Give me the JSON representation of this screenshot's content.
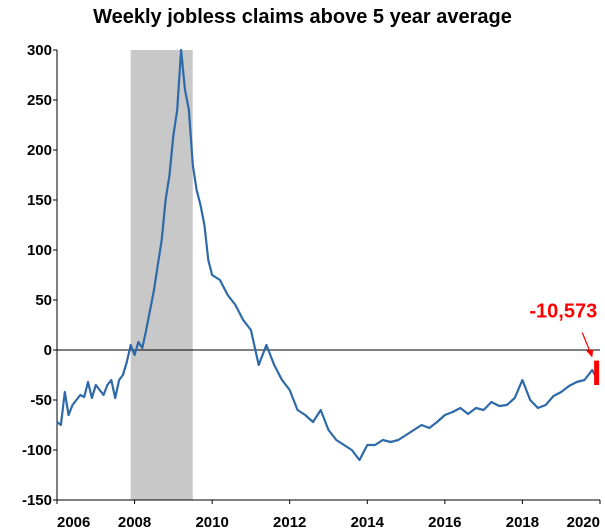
{
  "chart_data": {
    "type": "line",
    "title": "Weekly jobless claims above 5 year average",
    "xlabel": "",
    "ylabel": "",
    "xlim": [
      2006,
      2020
    ],
    "ylim": [
      -150,
      300
    ],
    "x_ticks": [
      "2006",
      "2008",
      "2010",
      "2012",
      "2014",
      "2016",
      "2018",
      "2020"
    ],
    "y_ticks": [
      "300",
      "250",
      "200",
      "150",
      "100",
      "50",
      "0",
      "-50",
      "-100",
      "-150"
    ],
    "recession_shading": [
      2007.9,
      2009.5
    ],
    "annotation": {
      "label": "-10,573",
      "x": 2019.8,
      "y": -10.6,
      "color": "#ff0000"
    },
    "latest_bar": {
      "x": 2019.9,
      "y_from": -35,
      "y_to": -10.6,
      "color": "#ff0000"
    },
    "line_color": "#2e6aa8",
    "series": [
      {
        "x": [
          2006.0,
          2006.1,
          2006.2,
          2006.3,
          2006.4,
          2006.5,
          2006.6,
          2006.7,
          2006.8,
          2006.9,
          2007.0,
          2007.1,
          2007.2,
          2007.3,
          2007.4,
          2007.5,
          2007.6,
          2007.7,
          2007.8,
          2007.9,
          2008.0,
          2008.1,
          2008.2,
          2008.3,
          2008.4,
          2008.5,
          2008.6,
          2008.7,
          2008.8,
          2008.9,
          2009.0,
          2009.1,
          2009.2,
          2009.3,
          2009.4,
          2009.5,
          2009.6,
          2009.7,
          2009.8,
          2009.9,
          2010.0,
          2010.2,
          2010.4,
          2010.6,
          2010.8,
          2011.0,
          2011.2,
          2011.4,
          2011.6,
          2011.8,
          2012.0,
          2012.2,
          2012.4,
          2012.6,
          2012.8,
          2013.0,
          2013.2,
          2013.4,
          2013.6,
          2013.8,
          2014.0,
          2014.2,
          2014.4,
          2014.6,
          2014.8,
          2015.0,
          2015.2,
          2015.4,
          2015.6,
          2015.8,
          2016.0,
          2016.2,
          2016.4,
          2016.6,
          2016.8,
          2017.0,
          2017.2,
          2017.4,
          2017.6,
          2017.8,
          2018.0,
          2018.2,
          2018.4,
          2018.6,
          2018.8,
          2019.0,
          2019.2,
          2019.4,
          2019.6,
          2019.8,
          2019.9
        ],
        "y": [
          -72,
          -75,
          -42,
          -65,
          -55,
          -50,
          -45,
          -47,
          -32,
          -48,
          -35,
          -40,
          -45,
          -35,
          -30,
          -48,
          -30,
          -25,
          -12,
          5,
          -5,
          8,
          2,
          20,
          40,
          60,
          85,
          110,
          150,
          175,
          215,
          240,
          300,
          260,
          240,
          185,
          160,
          145,
          125,
          90,
          75,
          70,
          55,
          45,
          30,
          20,
          -15,
          5,
          -15,
          -30,
          -40,
          -60,
          -65,
          -72,
          -60,
          -80,
          -90,
          -95,
          -100,
          -110,
          -95,
          -95,
          -90,
          -92,
          -90,
          -85,
          -80,
          -75,
          -78,
          -72,
          -65,
          -62,
          -58,
          -64,
          -58,
          -60,
          -52,
          -56,
          -55,
          -48,
          -30,
          -50,
          -58,
          -55,
          -46,
          -42,
          -36,
          -32,
          -30,
          -20,
          -27
        ]
      }
    ]
  }
}
